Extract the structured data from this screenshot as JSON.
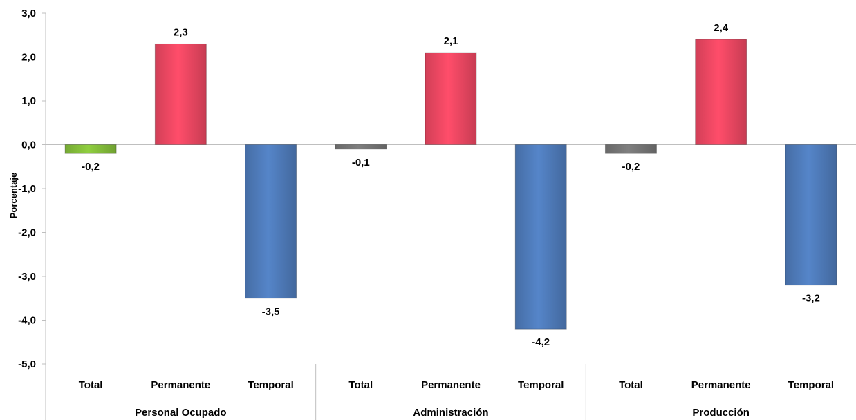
{
  "chart_data": {
    "type": "bar",
    "ylabel": "Porcentaje",
    "ylim": [
      -5,
      3
    ],
    "yticks": [
      "-5,0",
      "-4,0",
      "-3,0",
      "-2,0",
      "-1,0",
      "0,0",
      "1,0",
      "2,0",
      "3,0"
    ],
    "ytick_values": [
      -5,
      -4,
      -3,
      -2,
      -1,
      0,
      1,
      2,
      3
    ],
    "grid": false,
    "groups": [
      {
        "name": "Personal Ocupado",
        "bars": [
          {
            "category": "Total",
            "value": -0.2,
            "label": "-0,2",
            "color": "#8fce3f"
          },
          {
            "category": "Permanente",
            "value": 2.3,
            "label": "2,3",
            "color": "#ff4d6a"
          },
          {
            "category": "Temporal",
            "value": -3.5,
            "label": "-3,5",
            "color": "#5585c9"
          }
        ]
      },
      {
        "name": "Administración",
        "bars": [
          {
            "category": "Total",
            "value": -0.1,
            "label": "-0,1",
            "color": "#7f7f7f"
          },
          {
            "category": "Permanente",
            "value": 2.1,
            "label": "2,1",
            "color": "#ff4d6a"
          },
          {
            "category": "Temporal",
            "value": -4.2,
            "label": "-4,2",
            "color": "#5585c9"
          }
        ]
      },
      {
        "name": "Producción",
        "bars": [
          {
            "category": "Total",
            "value": -0.2,
            "label": "-0,2",
            "color": "#7f7f7f"
          },
          {
            "category": "Permanente",
            "value": 2.4,
            "label": "2,4",
            "color": "#ff4d6a"
          },
          {
            "category": "Temporal",
            "value": -3.2,
            "label": "-3,2",
            "color": "#5585c9"
          }
        ]
      }
    ]
  }
}
